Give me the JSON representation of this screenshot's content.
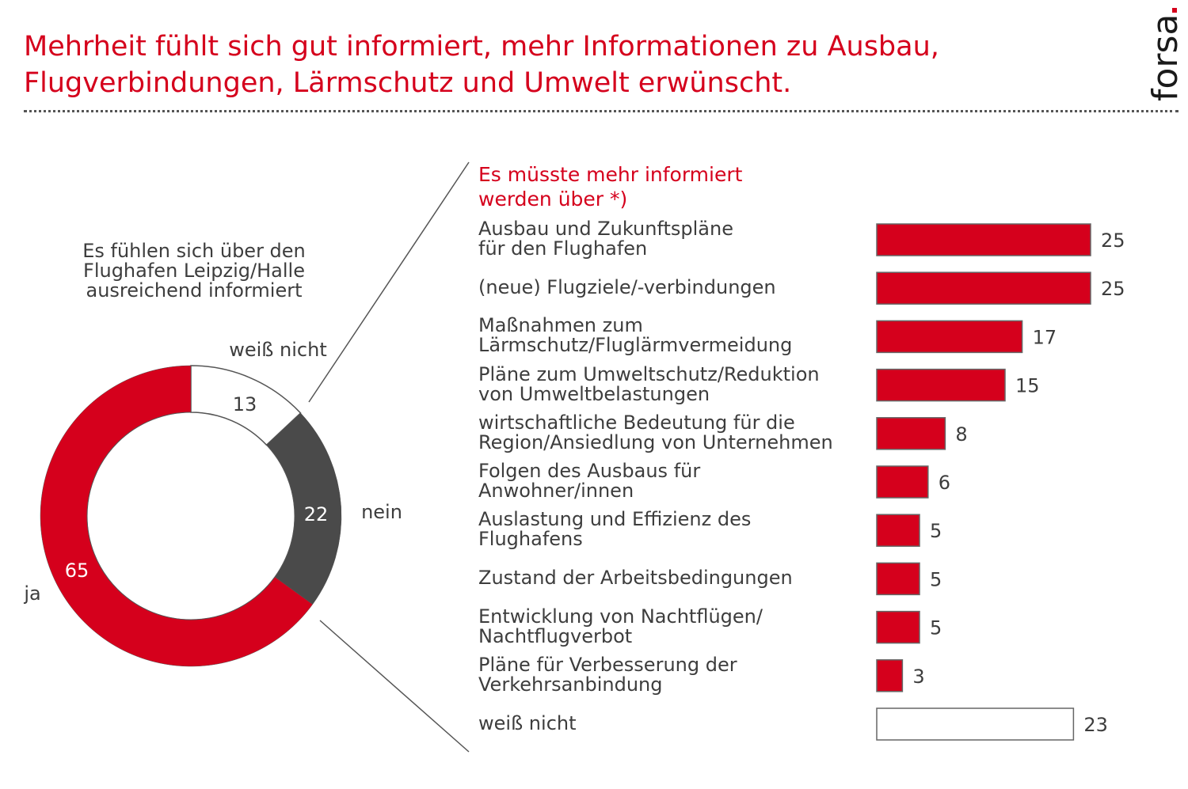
{
  "header": {
    "title_lines": [
      "Mehrheit fühlt sich gut informiert, mehr Informationen zu Ausbau,",
      "Flugverbindungen, Lärmschutz und Umwelt erwünscht."
    ],
    "logo_text": "forsa",
    "logo_dot": "."
  },
  "colors": {
    "accent_red": "#d5001c",
    "dark_gray": "#4a4a4a",
    "text": "#3d3d3d",
    "white": "#ffffff"
  },
  "chart_data": [
    {
      "type": "pie",
      "variant": "donut",
      "title_lines": [
        "Es fühlen sich über den",
        "Flughafen Leipzig/Halle",
        "ausreichend informiert"
      ],
      "unit": "%",
      "slices": [
        {
          "label": "weiß nicht",
          "value": 13,
          "color": "#ffffff"
        },
        {
          "label": "nein",
          "value": 22,
          "color": "#4a4a4a"
        },
        {
          "label": "ja",
          "value": 65,
          "color": "#d5001c"
        }
      ],
      "start": "top, clockwise"
    },
    {
      "type": "bar",
      "orientation": "horizontal",
      "title_lines": [
        "Es müsste mehr informiert",
        "werden über *)"
      ],
      "unit": "%",
      "xlim": [
        0,
        25
      ],
      "categories": [
        [
          "Ausbau und Zukunftspläne",
          "für den Flughafen"
        ],
        [
          "(neue) Flugziele/-verbindungen"
        ],
        [
          "Maßnahmen zum",
          "Lärmschutz/Fluglärmvermeidung"
        ],
        [
          "Pläne zum Umweltschutz/Reduktion",
          "von Umweltbelastungen"
        ],
        [
          "wirtschaftliche Bedeutung für die",
          "Region/Ansiedlung von Unternehmen"
        ],
        [
          "Folgen des Ausbaus für",
          "Anwohner/innen"
        ],
        [
          "Auslastung und Effizienz des",
          "Flughafens"
        ],
        [
          "Zustand der Arbeitsbedingungen"
        ],
        [
          "Entwicklung von Nachtflügen/",
          "Nachtflugverbot"
        ],
        [
          "Pläne für Verbesserung der",
          "Verkehrsanbindung"
        ],
        [
          "weiß nicht"
        ]
      ],
      "values": [
        25,
        25,
        17,
        15,
        8,
        6,
        5,
        5,
        5,
        3,
        23
      ],
      "bar_colors": [
        "#d5001c",
        "#d5001c",
        "#d5001c",
        "#d5001c",
        "#d5001c",
        "#d5001c",
        "#d5001c",
        "#d5001c",
        "#d5001c",
        "#d5001c",
        "#ffffff"
      ]
    }
  ]
}
